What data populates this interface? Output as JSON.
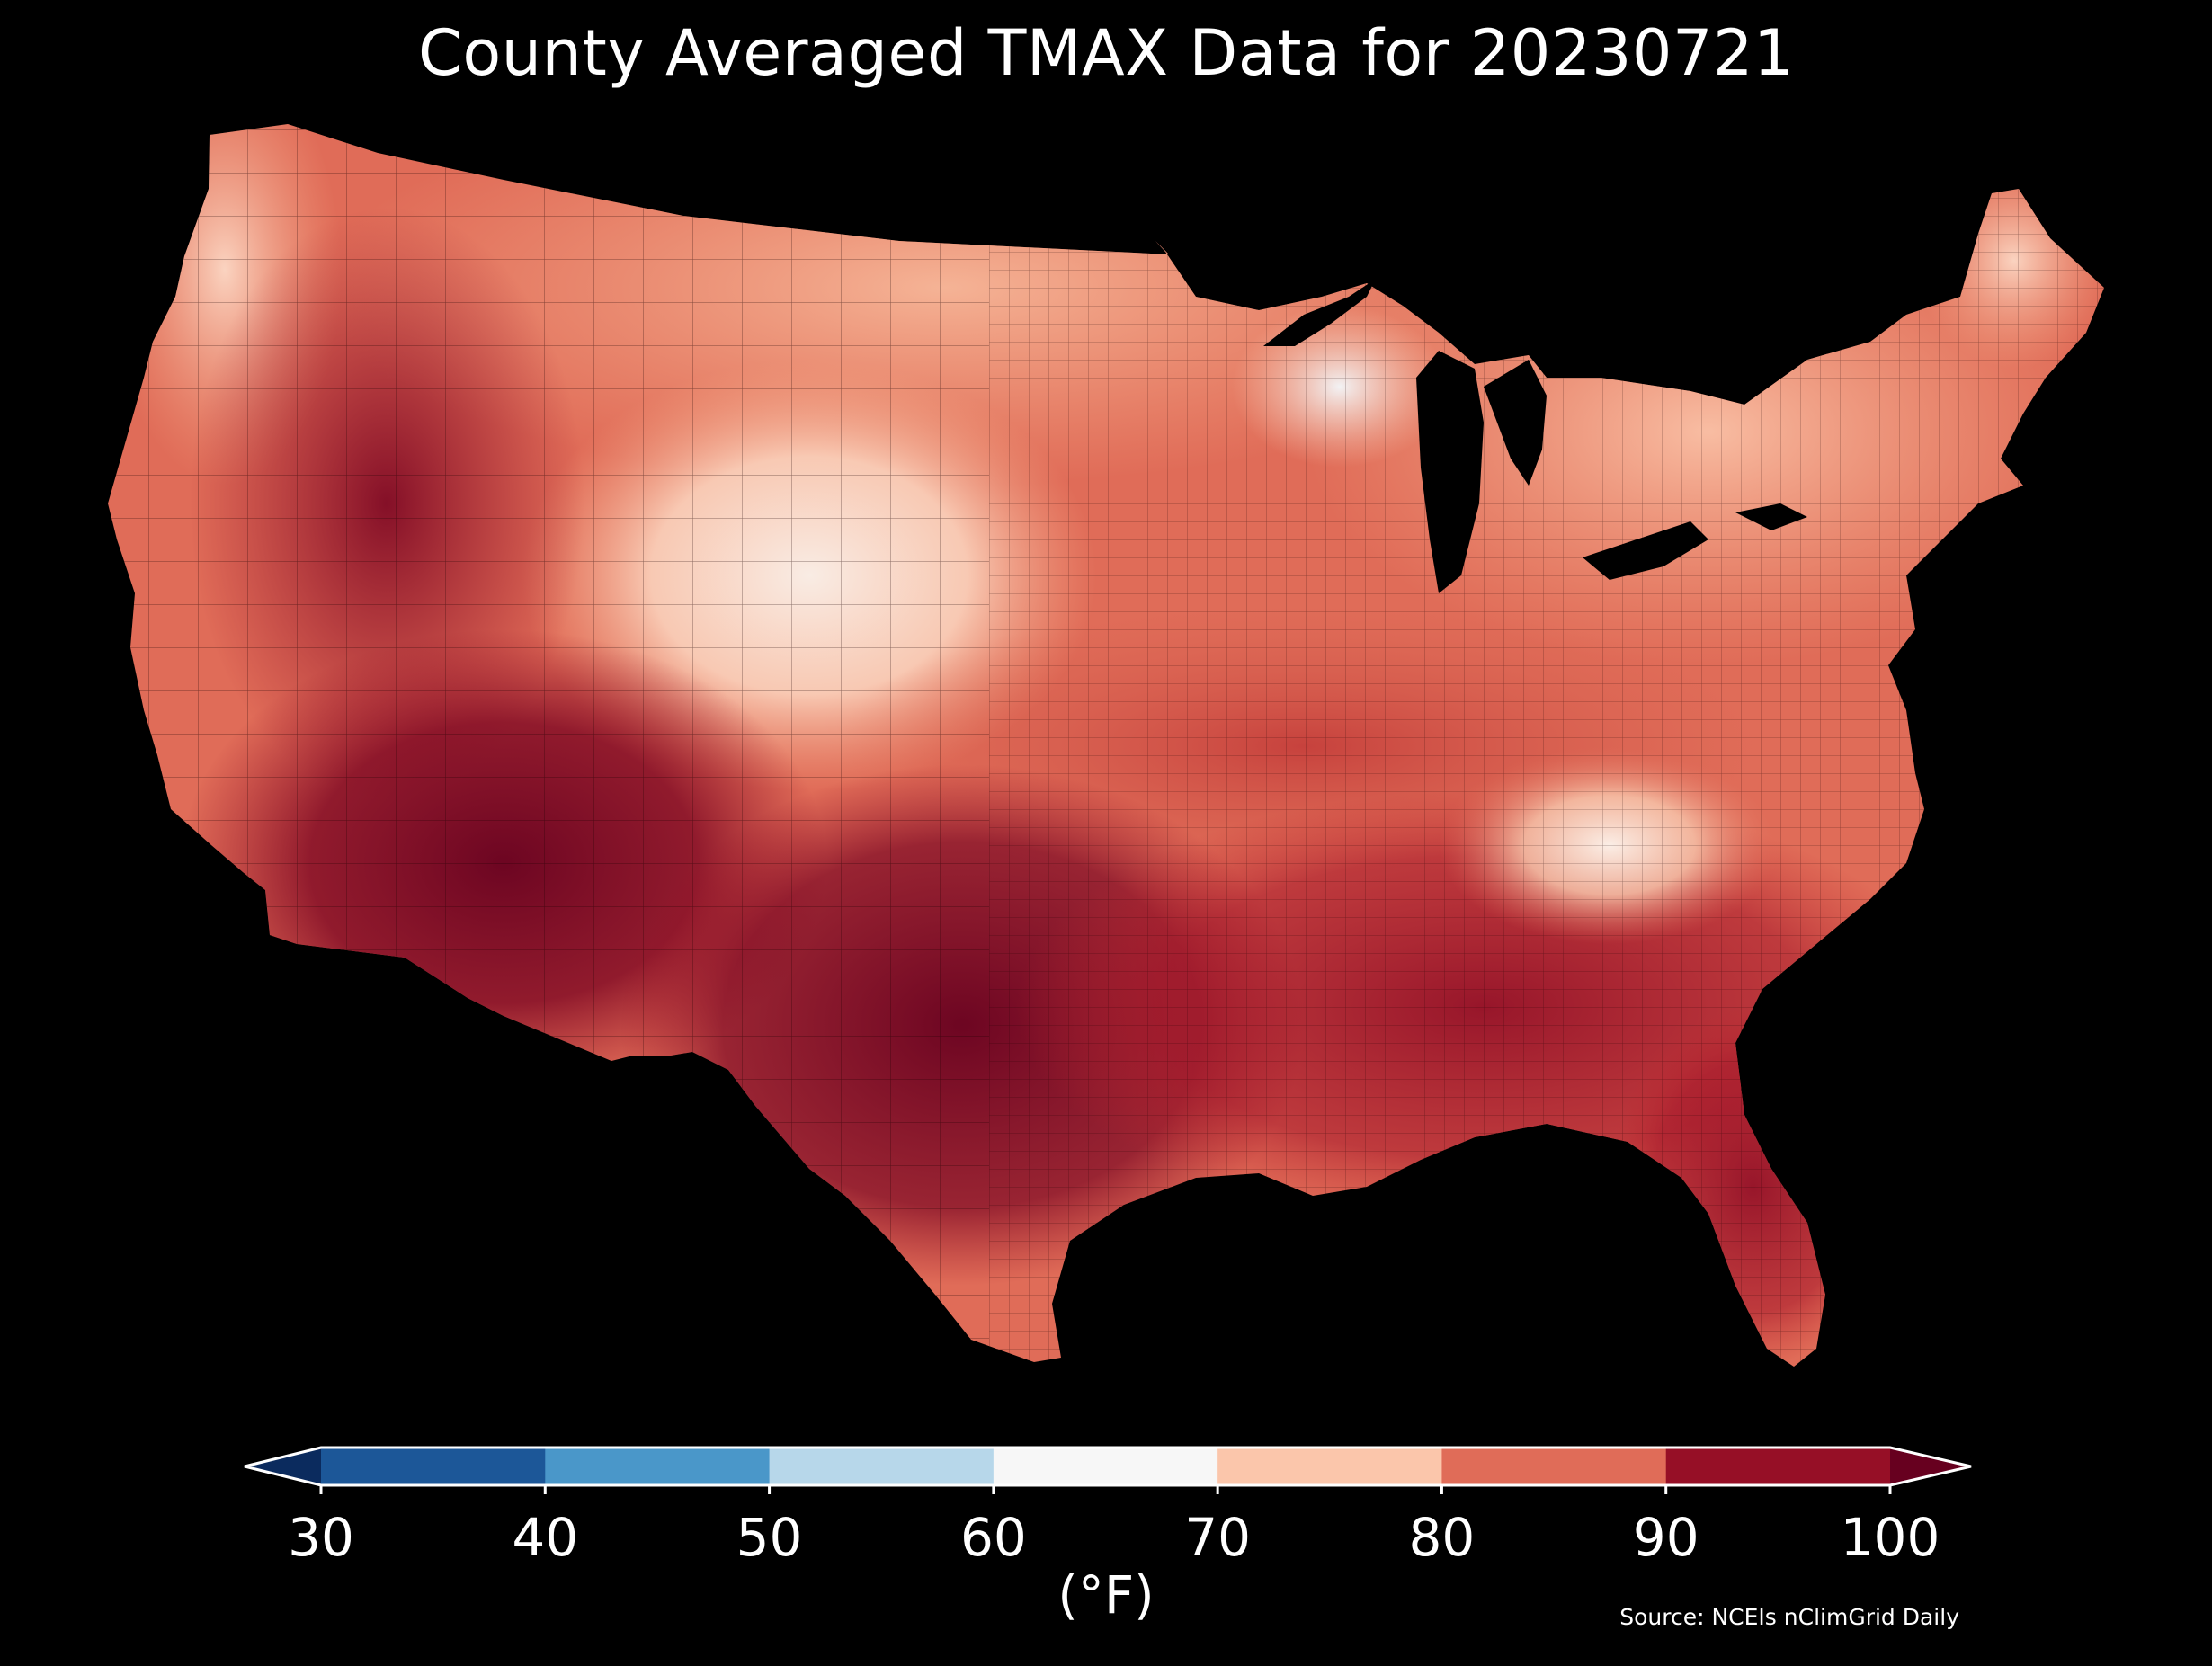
{
  "title": "County Averaged TMAX Data for 20230721",
  "colorbar": {
    "unit_label": "(°F)",
    "ticks": [
      "30",
      "40",
      "50",
      "60",
      "70",
      "80",
      "90",
      "100"
    ],
    "bins": [
      {
        "min": 30,
        "max": 40,
        "color": "#1c5798"
      },
      {
        "min": 40,
        "max": 50,
        "color": "#4a97c9"
      },
      {
        "min": 50,
        "max": 60,
        "color": "#b7d7ea"
      },
      {
        "min": 60,
        "max": 70,
        "color": "#f7f7f7"
      },
      {
        "min": 70,
        "max": 80,
        "color": "#fbc6ab"
      },
      {
        "min": 80,
        "max": 90,
        "color": "#e06c58"
      },
      {
        "min": 90,
        "max": 100,
        "color": "#960f26"
      }
    ],
    "under_color": "#0b2b5e",
    "over_color": "#67001f",
    "extend": "both"
  },
  "source": "Source: NCEIs nClimGrid Daily",
  "map": {
    "region": "Contiguous United States",
    "variable": "TMAX",
    "unit": "°F",
    "background": "#000000",
    "land_base_color": "#e06c58",
    "water_color": "#000000",
    "county_border_color": "#000000"
  }
}
